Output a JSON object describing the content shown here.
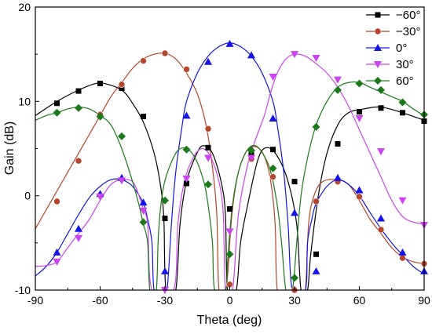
{
  "chart_data": {
    "type": "line",
    "title": "",
    "xlabel": "Theta (deg)",
    "ylabel": "Gain (dB)",
    "xlim": [
      -90,
      90
    ],
    "ylim": [
      -10,
      20
    ],
    "xticks": [
      "-90",
      "-60",
      "-30",
      "0",
      "30",
      "60",
      "90"
    ],
    "yticks": [
      "-10",
      "0",
      "10",
      "20"
    ],
    "grid": false,
    "legend_position": "top-right",
    "series": [
      {
        "name": "−60°",
        "color": "#000000",
        "marker": "square",
        "line": [
          [
            -90,
            8.5
          ],
          [
            -80,
            10.0
          ],
          [
            -70,
            11.2
          ],
          [
            -62,
            11.9
          ],
          [
            -58,
            11.9
          ],
          [
            -50,
            11.2
          ],
          [
            -45,
            9.8
          ],
          [
            -40,
            7.8
          ],
          [
            -35,
            4.5
          ],
          [
            -32,
            1.0
          ],
          [
            -30.5,
            -2.5
          ],
          [
            -29.5,
            -10
          ],
          [
            -25,
            -10
          ],
          [
            -23,
            -3.0
          ],
          [
            -20,
            1.5
          ],
          [
            -15,
            4.6
          ],
          [
            -12,
            5.3
          ],
          [
            -8,
            4.5
          ],
          [
            -4,
            1.5
          ],
          [
            -2,
            -2.0
          ],
          [
            -1,
            -10
          ],
          [
            3,
            -10
          ],
          [
            5,
            -5.0
          ],
          [
            8,
            -1.3
          ],
          [
            13,
            3.8
          ],
          [
            17,
            5.1
          ],
          [
            22,
            4.2
          ],
          [
            27,
            1.5
          ],
          [
            31,
            -3.0
          ],
          [
            33,
            -10
          ],
          [
            36,
            -10
          ],
          [
            37.5,
            -6.2
          ],
          [
            41,
            0.0
          ],
          [
            45,
            4.5
          ],
          [
            50,
            7.5
          ],
          [
            55,
            8.8
          ],
          [
            62,
            9.2
          ],
          [
            70,
            9.4
          ],
          [
            80,
            8.8
          ],
          [
            90,
            8.0
          ]
        ],
        "markers": [
          [
            -80,
            9.8
          ],
          [
            -70,
            11.1
          ],
          [
            -60,
            11.9
          ],
          [
            -50,
            11.4
          ],
          [
            -40,
            8.4
          ],
          [
            -30,
            -2.4
          ],
          [
            -20,
            1.3
          ],
          [
            -10,
            5.1
          ],
          [
            0,
            -1.4
          ],
          [
            10,
            4.5
          ],
          [
            20,
            4.9
          ],
          [
            30,
            1.5
          ],
          [
            40,
            -6.2
          ],
          [
            50,
            5.5
          ],
          [
            60,
            8.9
          ],
          [
            70,
            9.3
          ],
          [
            80,
            8.8
          ],
          [
            90,
            7.9
          ]
        ]
      },
      {
        "name": "−30°",
        "color": "#b5452b",
        "marker": "circle",
        "line": [
          [
            -90,
            -3.5
          ],
          [
            -85,
            -1.5
          ],
          [
            -80,
            0.5
          ],
          [
            -75,
            2.5
          ],
          [
            -70,
            4.5
          ],
          [
            -65,
            6.5
          ],
          [
            -60,
            8.5
          ],
          [
            -55,
            10.5
          ],
          [
            -50,
            12.0
          ],
          [
            -45,
            13.5
          ],
          [
            -40,
            14.5
          ],
          [
            -35,
            15.0
          ],
          [
            -30,
            15.1
          ],
          [
            -25,
            14.5
          ],
          [
            -20,
            13.0
          ],
          [
            -15,
            10.8
          ],
          [
            -11,
            7.5
          ],
          [
            -8,
            3.0
          ],
          [
            -6,
            -2.0
          ],
          [
            -5,
            -10
          ],
          [
            -2,
            -10
          ],
          [
            -1,
            -8.5
          ],
          [
            1,
            -2.0
          ],
          [
            4,
            2.5
          ],
          [
            8,
            4.8
          ],
          [
            12,
            5.2
          ],
          [
            16,
            4.2
          ],
          [
            19,
            1.5
          ],
          [
            21,
            -3.0
          ],
          [
            22,
            -10
          ],
          [
            26,
            -10
          ],
          [
            28,
            -10
          ],
          [
            30,
            -10
          ],
          [
            32,
            -10
          ],
          [
            35,
            -10
          ],
          [
            36.5,
            -3.0
          ],
          [
            39,
            0.0
          ],
          [
            43,
            1.5
          ],
          [
            50,
            1.7
          ],
          [
            55,
            1.2
          ],
          [
            60,
            -0.5
          ],
          [
            65,
            -2.5
          ],
          [
            70,
            -4.0
          ],
          [
            75,
            -5.5
          ],
          [
            80,
            -6.5
          ],
          [
            85,
            -7.0
          ],
          [
            90,
            -7.2
          ]
        ],
        "markers": [
          [
            -80,
            -0.6
          ],
          [
            -70,
            3.7
          ],
          [
            -60,
            8.6
          ],
          [
            -50,
            11.8
          ],
          [
            -40,
            14.3
          ],
          [
            -30,
            15.1
          ],
          [
            -20,
            13.4
          ],
          [
            -10,
            7.1
          ],
          [
            0,
            -9.4
          ],
          [
            10,
            3.9
          ],
          [
            20,
            2.0
          ],
          [
            30,
            -10
          ],
          [
            40,
            -0.6
          ],
          [
            50,
            1.5
          ],
          [
            60,
            -0.1
          ],
          [
            70,
            -3.6
          ],
          [
            80,
            -6.6
          ],
          [
            90,
            -7.2
          ]
        ]
      },
      {
        "name": "0°",
        "color": "#1414e6",
        "marker": "triangle-up",
        "line": [
          [
            -90,
            -8.5
          ],
          [
            -85,
            -7.5
          ],
          [
            -80,
            -6.0
          ],
          [
            -75,
            -4.0
          ],
          [
            -70,
            -2.0
          ],
          [
            -65,
            -0.2
          ],
          [
            -60,
            1.0
          ],
          [
            -55,
            1.7
          ],
          [
            -50,
            1.7
          ],
          [
            -45,
            1.0
          ],
          [
            -40,
            -0.8
          ],
          [
            -38,
            -2.5
          ],
          [
            -36,
            -5.0
          ],
          [
            -35,
            -10
          ],
          [
            -31,
            -10
          ],
          [
            -29,
            -10
          ],
          [
            -27,
            -3.0
          ],
          [
            -25,
            2.5
          ],
          [
            -22,
            7.5
          ],
          [
            -20,
            10.0
          ],
          [
            -15,
            13.0
          ],
          [
            -10,
            14.8
          ],
          [
            -5,
            15.8
          ],
          [
            0,
            16.2
          ],
          [
            5,
            15.8
          ],
          [
            10,
            14.8
          ],
          [
            15,
            13.0
          ],
          [
            20,
            10.0
          ],
          [
            22,
            7.5
          ],
          [
            25,
            2.5
          ],
          [
            27,
            -3.0
          ],
          [
            29,
            -10
          ],
          [
            35,
            -10
          ],
          [
            36,
            -5.0
          ],
          [
            38,
            -2.5
          ],
          [
            40,
            -0.8
          ],
          [
            45,
            1.0
          ],
          [
            50,
            1.7
          ],
          [
            55,
            1.2
          ],
          [
            60,
            0.0
          ],
          [
            65,
            -1.8
          ],
          [
            70,
            -3.5
          ],
          [
            75,
            -5.0
          ],
          [
            80,
            -6.3
          ],
          [
            85,
            -7.5
          ],
          [
            90,
            -8.3
          ]
        ],
        "markers": [
          [
            -80,
            -6.0
          ],
          [
            -70,
            -3.5
          ],
          [
            -60,
            0.2
          ],
          [
            -50,
            1.9
          ],
          [
            -40,
            -0.7
          ],
          [
            -30,
            -8.0
          ],
          [
            -20,
            8.5
          ],
          [
            -10,
            14.2
          ],
          [
            0,
            16.1
          ],
          [
            10,
            14.9
          ],
          [
            20,
            8.2
          ],
          [
            30,
            -1.8
          ],
          [
            40,
            -8.0
          ],
          [
            50,
            1.9
          ],
          [
            60,
            0.6
          ],
          [
            70,
            -2.4
          ],
          [
            80,
            -6.0
          ],
          [
            90,
            -8.0
          ]
        ]
      },
      {
        "name": "30°",
        "color": "#cc44ee",
        "marker": "triangle-down",
        "line": [
          [
            -90,
            -7.5
          ],
          [
            -85,
            -7.4
          ],
          [
            -80,
            -7.0
          ],
          [
            -75,
            -5.5
          ],
          [
            -70,
            -4.0
          ],
          [
            -65,
            -2.5
          ],
          [
            -60,
            -0.5
          ],
          [
            -55,
            1.2
          ],
          [
            -50,
            1.7
          ],
          [
            -45,
            1.5
          ],
          [
            -42,
            0.0
          ],
          [
            -40,
            -1.5
          ],
          [
            -38,
            -3.0
          ],
          [
            -36,
            -10
          ],
          [
            -26,
            -10
          ],
          [
            -24,
            -3.0
          ],
          [
            -21,
            1.5
          ],
          [
            -17,
            4.0
          ],
          [
            -13,
            5.0
          ],
          [
            -9,
            4.2
          ],
          [
            -5,
            1.5
          ],
          [
            -3,
            -2.0
          ],
          [
            -2,
            -10
          ],
          [
            1,
            -10
          ],
          [
            2,
            -8.5
          ],
          [
            4,
            -2.0
          ],
          [
            8,
            3.0
          ],
          [
            12,
            6.0
          ],
          [
            16,
            8.5
          ],
          [
            19,
            11.0
          ],
          [
            22,
            13.0
          ],
          [
            26,
            14.5
          ],
          [
            30,
            15.0
          ],
          [
            35,
            14.8
          ],
          [
            40,
            14.0
          ],
          [
            45,
            13.0
          ],
          [
            50,
            11.5
          ],
          [
            55,
            9.5
          ],
          [
            60,
            7.0
          ],
          [
            65,
            4.5
          ],
          [
            70,
            2.0
          ],
          [
            75,
            -0.5
          ],
          [
            80,
            -2.2
          ],
          [
            85,
            -2.8
          ],
          [
            90,
            -3.0
          ]
        ],
        "markers": [
          [
            -80,
            -7.0
          ],
          [
            -70,
            -4.5
          ],
          [
            -60,
            -0.1
          ],
          [
            -50,
            1.6
          ],
          [
            -40,
            -1.6
          ],
          [
            -30,
            -10
          ],
          [
            -20,
            1.8
          ],
          [
            -10,
            4.0
          ],
          [
            0,
            -3.8
          ],
          [
            10,
            4.0
          ],
          [
            20,
            12.6
          ],
          [
            30,
            15.0
          ],
          [
            40,
            14.6
          ],
          [
            50,
            12.3
          ],
          [
            60,
            8.2
          ],
          [
            70,
            4.7
          ],
          [
            80,
            -0.5
          ],
          [
            90,
            -3.1
          ]
        ]
      },
      {
        "name": "60°",
        "color": "#1a7a1a",
        "marker": "diamond",
        "line": [
          [
            -90,
            8.0
          ],
          [
            -85,
            8.5
          ],
          [
            -80,
            8.8
          ],
          [
            -75,
            9.2
          ],
          [
            -70,
            9.4
          ],
          [
            -65,
            9.2
          ],
          [
            -60,
            8.5
          ],
          [
            -55,
            7.5
          ],
          [
            -50,
            5.0
          ],
          [
            -45,
            1.5
          ],
          [
            -42,
            -1.0
          ],
          [
            -40,
            -3.0
          ],
          [
            -38,
            -5.0
          ],
          [
            -37,
            -10
          ],
          [
            -34,
            -10
          ],
          [
            -33,
            -4.0
          ],
          [
            -31,
            0.5
          ],
          [
            -28,
            3.0
          ],
          [
            -24,
            4.8
          ],
          [
            -20,
            5.0
          ],
          [
            -16,
            4.0
          ],
          [
            -12,
            1.5
          ],
          [
            -10,
            -1.0
          ],
          [
            -8,
            -5.0
          ],
          [
            -7,
            -10
          ],
          [
            -2,
            -10
          ],
          [
            -1,
            -7.0
          ],
          [
            1,
            -1.5
          ],
          [
            4,
            2.5
          ],
          [
            8,
            4.8
          ],
          [
            12,
            5.3
          ],
          [
            16,
            4.2
          ],
          [
            19,
            2.5
          ],
          [
            22,
            -1.0
          ],
          [
            24,
            -5.0
          ],
          [
            26,
            -10
          ],
          [
            29,
            -10
          ],
          [
            31,
            -5.0
          ],
          [
            33,
            0.0
          ],
          [
            36,
            4.0
          ],
          [
            40,
            7.5
          ],
          [
            45,
            10.0
          ],
          [
            50,
            11.5
          ],
          [
            55,
            12.0
          ],
          [
            60,
            12.0
          ],
          [
            65,
            11.5
          ],
          [
            70,
            11.0
          ],
          [
            75,
            10.5
          ],
          [
            80,
            10.0
          ],
          [
            85,
            9.2
          ],
          [
            90,
            8.5
          ]
        ],
        "markers": [
          [
            -80,
            8.8
          ],
          [
            -70,
            9.3
          ],
          [
            -60,
            8.4
          ],
          [
            -50,
            6.3
          ],
          [
            -40,
            -2.8
          ],
          [
            -30,
            -0.5
          ],
          [
            -20,
            4.9
          ],
          [
            -10,
            1.2
          ],
          [
            0,
            -6.2
          ],
          [
            10,
            4.8
          ],
          [
            20,
            2.9
          ],
          [
            30,
            -8.7
          ],
          [
            40,
            7.3
          ],
          [
            50,
            11.2
          ],
          [
            60,
            11.9
          ],
          [
            70,
            11.2
          ],
          [
            80,
            9.9
          ],
          [
            90,
            8.6
          ]
        ]
      }
    ]
  }
}
